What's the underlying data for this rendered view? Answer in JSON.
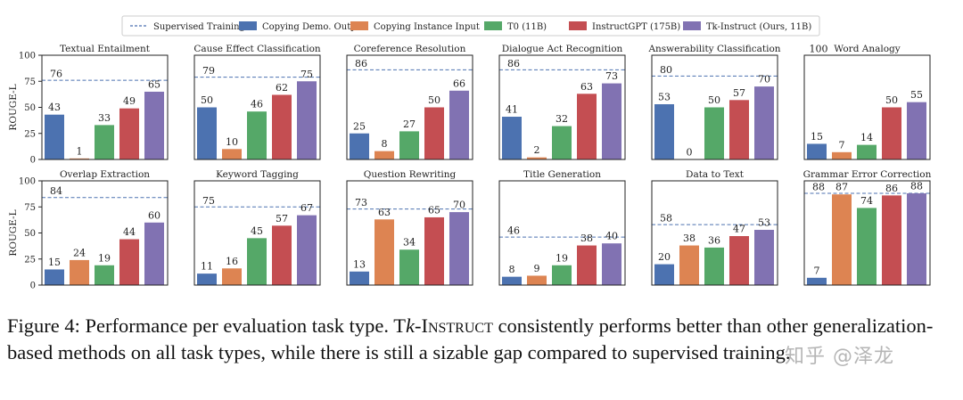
{
  "legend": [
    {
      "label": "Supervised Training",
      "kind": "line",
      "color": "#4c72b0"
    },
    {
      "label": "Copying Demo. Output",
      "kind": "bar",
      "color": "#4c72b0"
    },
    {
      "label": "Copying Instance Input",
      "kind": "bar",
      "color": "#dd8452"
    },
    {
      "label": "T0 (11B)",
      "kind": "bar",
      "color": "#55a868"
    },
    {
      "label": "InstructGPT (175B)",
      "kind": "bar",
      "color": "#c44e52"
    },
    {
      "label": "Tk-Instruct (Ours, 11B)",
      "kind": "bar",
      "color": "#8172b2"
    }
  ],
  "chart_data": [
    {
      "type": "bar",
      "title": "Textual Entailment",
      "ylabel": "ROUGE-L",
      "ylim": [
        0,
        100
      ],
      "yticks": [
        "0",
        "25",
        "50",
        "75",
        "100"
      ],
      "supervised": 76,
      "values": [
        43,
        1,
        33,
        49,
        65
      ]
    },
    {
      "type": "bar",
      "title": "Cause Effect Classification",
      "ylabel": "",
      "ylim": [
        0,
        100
      ],
      "supervised": 79,
      "values": [
        50,
        10,
        46,
        62,
        75
      ]
    },
    {
      "type": "bar",
      "title": "Coreference Resolution",
      "ylabel": "",
      "ylim": [
        0,
        100
      ],
      "supervised": 86,
      "values": [
        25,
        8,
        27,
        50,
        66
      ]
    },
    {
      "type": "bar",
      "title": "Dialogue Act Recognition",
      "ylabel": "",
      "ylim": [
        0,
        100
      ],
      "supervised": 86,
      "values": [
        41,
        2,
        32,
        63,
        73
      ]
    },
    {
      "type": "bar",
      "title": "Answerability Classification",
      "ylabel": "",
      "ylim": [
        0,
        100
      ],
      "supervised": 80,
      "values": [
        53,
        0,
        50,
        57,
        70
      ]
    },
    {
      "type": "bar",
      "title": "Word Analogy",
      "ylabel": "",
      "ylim": [
        0,
        100
      ],
      "supervised": 100,
      "values": [
        15,
        7,
        14,
        50,
        55
      ]
    },
    {
      "type": "bar",
      "title": "Overlap Extraction",
      "ylabel": "ROUGE-L",
      "ylim": [
        0,
        100
      ],
      "yticks": [
        "0",
        "25",
        "50",
        "75",
        "100"
      ],
      "supervised": 84,
      "values": [
        15,
        24,
        19,
        44,
        60
      ]
    },
    {
      "type": "bar",
      "title": "Keyword Tagging",
      "ylabel": "",
      "ylim": [
        0,
        100
      ],
      "supervised": 75,
      "values": [
        11,
        16,
        45,
        57,
        67
      ]
    },
    {
      "type": "bar",
      "title": "Question Rewriting",
      "ylabel": "",
      "ylim": [
        0,
        100
      ],
      "supervised": 73,
      "values": [
        13,
        63,
        34,
        65,
        70
      ]
    },
    {
      "type": "bar",
      "title": "Title Generation",
      "ylabel": "",
      "ylim": [
        0,
        100
      ],
      "supervised": 46,
      "values": [
        8,
        9,
        19,
        38,
        40
      ]
    },
    {
      "type": "bar",
      "title": "Data to Text",
      "ylabel": "",
      "ylim": [
        0,
        100
      ],
      "supervised": 58,
      "values": [
        20,
        38,
        36,
        47,
        53
      ]
    },
    {
      "type": "bar",
      "title": "Grammar Error Correction",
      "ylabel": "",
      "ylim": [
        0,
        100
      ],
      "supervised": 88,
      "values": [
        7,
        87,
        74,
        86,
        88
      ]
    }
  ],
  "caption": {
    "prefix": "Figure 4: Performance per evaluation task type. T",
    "k": "k",
    "name": "-Instruct",
    "line1_rest": " consistently performs better than other generalization-",
    "line2": "based methods on all task types, while there is still a sizable gap compared to supervised training."
  },
  "watermark": "知乎 @泽龙"
}
